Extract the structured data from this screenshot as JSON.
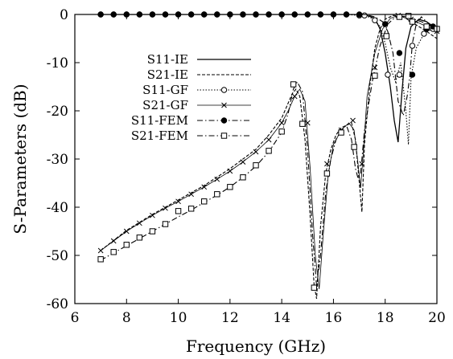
{
  "chart_data": {
    "type": "line",
    "xlabel": "Frequency (GHz)",
    "ylabel": "S-Parameters (dB)",
    "xlim": [
      6,
      20
    ],
    "ylim": [
      -60,
      0
    ],
    "xticks": [
      6,
      8,
      10,
      12,
      14,
      16,
      18,
      20
    ],
    "yticks": [
      0,
      -10,
      -20,
      -30,
      -40,
      -50,
      -60
    ],
    "xtick_labels": [
      "6",
      "8",
      "10",
      "12",
      "14",
      "16",
      "18",
      "20"
    ],
    "ytick_labels": [
      "0",
      "-10",
      "-20",
      "-30",
      "-40",
      "-50",
      "-60"
    ],
    "grid": false,
    "legend_position": "middle-left",
    "series": [
      {
        "name": "S11-IE",
        "line": "solid",
        "marker": "none",
        "x": [
          7,
          8,
          9,
          10,
          11,
          12,
          13,
          14,
          15,
          16,
          16.5,
          17,
          17.3,
          17.6,
          17.8,
          18.0,
          18.2,
          18.35,
          18.5,
          18.65,
          18.8,
          19.0,
          19.3,
          19.6,
          20
        ],
        "y": [
          0,
          0,
          0,
          0,
          0,
          0,
          0,
          0,
          0,
          0,
          0,
          0,
          -0.2,
          -0.8,
          -3,
          -8,
          -15,
          -22,
          -26.5,
          -16,
          -7,
          -2.5,
          -1,
          -1.5,
          -3
        ]
      },
      {
        "name": "S21-IE",
        "line": "dashed",
        "marker": "none",
        "x": [
          7,
          8,
          9,
          10,
          11,
          12,
          13,
          13.5,
          14,
          14.2,
          14.4,
          14.55,
          14.7,
          14.9,
          15.1,
          15.25,
          15.35,
          15.5,
          15.7,
          15.9,
          16.1,
          16.3,
          16.5,
          16.7,
          16.85,
          17.0,
          17.1,
          17.2,
          17.4,
          17.6,
          17.8,
          18.0,
          18.3,
          18.6,
          18.8,
          19.0,
          19.3,
          19.6,
          20
        ],
        "y": [
          -49,
          -44.8,
          -41.5,
          -38.5,
          -35.5,
          -32,
          -28,
          -25,
          -21.5,
          -19,
          -16.5,
          -15.5,
          -17,
          -26,
          -42,
          -56,
          -59,
          -44,
          -33,
          -28,
          -25,
          -23.5,
          -23,
          -22.5,
          -26,
          -35,
          -41,
          -27,
          -15,
          -7,
          -3,
          -1,
          -0.2,
          -0.3,
          -0.8,
          -1.5,
          -2.5,
          -3.5,
          -5
        ]
      },
      {
        "name": "S11-GF",
        "line": "dotted",
        "marker": "circle",
        "x": [
          7,
          7.5,
          8,
          8.5,
          9,
          9.5,
          10,
          10.5,
          11,
          11.5,
          12,
          12.5,
          13,
          13.5,
          14,
          14.5,
          15,
          15.5,
          16,
          16.5,
          17,
          17.2,
          17.5,
          17.8,
          18.0,
          18.2,
          18.4,
          18.6,
          18.8,
          18.9,
          19.0,
          19.2,
          19.5,
          19.8,
          20
        ],
        "y": [
          0,
          0,
          0,
          0,
          0,
          0,
          0,
          0,
          0,
          0,
          0,
          0,
          0,
          0,
          0,
          0,
          0,
          0,
          0,
          0,
          -0.2,
          -0.2,
          -0.8,
          -2.5,
          -6,
          -11,
          -14,
          -10,
          -20,
          -27,
          -13,
          -7,
          -4,
          -3,
          -2.5
        ],
        "marker_x": [
          7,
          7.5,
          8,
          8.5,
          9,
          9.5,
          10,
          10.5,
          11,
          11.5,
          12,
          12.5,
          13,
          13.5,
          14,
          14.5,
          15,
          15.5,
          16,
          16.5,
          17.0,
          17.2,
          17.6,
          18.1,
          18.55,
          19.05,
          19.5,
          19.85
        ],
        "marker_y": [
          0,
          0,
          0,
          0,
          0,
          0,
          0,
          0,
          0,
          0,
          0,
          0,
          0,
          0,
          0,
          0,
          0,
          0,
          0,
          0,
          -0.2,
          -0.2,
          -1.2,
          -12.5,
          -12.5,
          -6.5,
          -4,
          -3
        ]
      },
      {
        "name": "S21-GF",
        "line": "solid-thin",
        "marker": "cross",
        "x": [
          7,
          7.5,
          8,
          8.5,
          9,
          9.5,
          10,
          10.5,
          11,
          11.5,
          12,
          12.5,
          13,
          13.5,
          14,
          14.25,
          14.5,
          14.7,
          14.9,
          15.1,
          15.3,
          15.45,
          15.6,
          15.8,
          16.0,
          16.3,
          16.6,
          16.8,
          16.95,
          17.05,
          17.15,
          17.3,
          17.6,
          17.9,
          18.2,
          18.5,
          18.8,
          19.2,
          19.6,
          20
        ],
        "y": [
          -49,
          -47,
          -45,
          -43.3,
          -41.7,
          -40.2,
          -38.8,
          -37.3,
          -35.8,
          -34.2,
          -32.5,
          -30.6,
          -28.5,
          -26,
          -22.5,
          -20,
          -17,
          -15.5,
          -18,
          -32,
          -50,
          -57,
          -46,
          -33,
          -27,
          -24,
          -22.5,
          -24,
          -31,
          -36,
          -29,
          -17,
          -8,
          -3,
          -0.8,
          -0.2,
          -0.5,
          -1.5,
          -2.5,
          -3.5
        ],
        "marker_x": [
          7,
          7.5,
          8,
          8.5,
          9,
          9.5,
          10,
          10.5,
          11,
          11.5,
          12,
          12.5,
          13,
          13.5,
          14,
          14.5,
          15,
          15.75,
          16.3,
          16.75,
          17.1,
          17.6,
          18.0,
          18.5,
          19.0,
          19.6,
          20
        ],
        "marker_y": [
          -49,
          -47,
          -45,
          -43.3,
          -41.7,
          -40.2,
          -38.8,
          -37.3,
          -35.8,
          -34.2,
          -32.5,
          -30.6,
          -28.5,
          -26,
          -22.5,
          -17,
          -22.5,
          -31,
          -24,
          -22,
          -31,
          -11,
          -2,
          -0.2,
          -1,
          -2.5,
          -3.5
        ]
      },
      {
        "name": "S11-FEM",
        "line": "dash-dot",
        "marker": "filled-circle",
        "x": [
          7,
          7.5,
          8,
          8.5,
          9,
          9.5,
          10,
          10.5,
          11,
          11.5,
          12,
          12.5,
          13,
          13.5,
          14,
          14.5,
          15,
          15.5,
          16,
          16.5,
          17,
          17.3,
          17.6,
          17.9,
          18.1,
          18.3,
          18.5,
          18.7,
          18.85,
          18.95,
          19.05,
          19.2,
          19.4,
          19.6,
          19.8,
          20
        ],
        "y": [
          0,
          0,
          0,
          0,
          0,
          0,
          0,
          0,
          0,
          0,
          0,
          0,
          0,
          0,
          0,
          0,
          0,
          0,
          0,
          0,
          0,
          -0.1,
          -0.5,
          -1.5,
          -3.5,
          -8,
          -18,
          -21,
          -17,
          -13,
          -6,
          -2,
          -0.5,
          -1.5,
          -2.5,
          -3
        ],
        "marker_x": [
          7,
          7.5,
          8,
          8.5,
          9,
          9.5,
          10,
          10.5,
          11,
          11.5,
          12,
          12.5,
          13,
          13.5,
          14,
          14.5,
          15,
          15.5,
          16,
          16.5,
          17.0,
          18.0,
          18.55,
          19.05,
          19.6,
          19.85
        ],
        "marker_y": [
          0,
          0,
          0,
          0,
          0,
          0,
          0,
          0,
          0,
          0,
          0,
          0,
          0,
          0,
          0,
          0,
          0,
          0,
          0,
          0,
          0,
          -2,
          -8,
          -12.5,
          -3,
          -2.5
        ]
      },
      {
        "name": "S21-FEM",
        "line": "dash-dot",
        "marker": "square",
        "x": [
          7,
          7.5,
          8,
          8.5,
          9,
          9.5,
          10,
          10.5,
          11,
          11.5,
          12,
          12.5,
          13,
          13.5,
          14,
          14.25,
          14.45,
          14.6,
          14.8,
          15.0,
          15.2,
          15.35,
          15.5,
          15.7,
          15.9,
          16.1,
          16.3,
          16.5,
          16.7,
          16.85,
          16.95,
          17.05,
          17.2,
          17.5,
          17.8,
          18.1,
          18.4,
          18.7,
          19.0,
          19.4,
          19.8,
          20
        ],
        "y": [
          -51,
          -49.5,
          -48,
          -46.5,
          -45,
          -43.5,
          -42,
          -40.6,
          -39,
          -37.5,
          -35.8,
          -33.8,
          -31.5,
          -28.5,
          -24.5,
          -20.5,
          -15.5,
          -14,
          -16,
          -28,
          -46,
          -56.5,
          -50,
          -37,
          -30,
          -26,
          -24,
          -23,
          -26,
          -32,
          -34,
          -33,
          -24,
          -14,
          -6.5,
          -2,
          -0.5,
          -0.3,
          -0.8,
          -1.5,
          -2.5,
          -3
        ],
        "marker_x": [
          7,
          7.5,
          8,
          8.5,
          9,
          9.5,
          10,
          10.5,
          11,
          11.5,
          12,
          12.5,
          13,
          13.5,
          14,
          14.45,
          14.8,
          15.25,
          15.75,
          16.3,
          16.8,
          17.6,
          18.05,
          18.55,
          18.9,
          19.05,
          19.6,
          20
        ],
        "marker_y": [
          -50.8,
          -49.3,
          -47.8,
          -46.3,
          -45,
          -43.5,
          -40.8,
          -40.3,
          -38.8,
          -37.3,
          -35.8,
          -33.8,
          -31.3,
          -28.3,
          -24.3,
          -14.5,
          -22.7,
          -56.7,
          -33,
          -24.5,
          -27.5,
          -12.7,
          -4.5,
          -0.5,
          -0.3,
          -1.5,
          -2.5,
          -3
        ]
      }
    ]
  }
}
